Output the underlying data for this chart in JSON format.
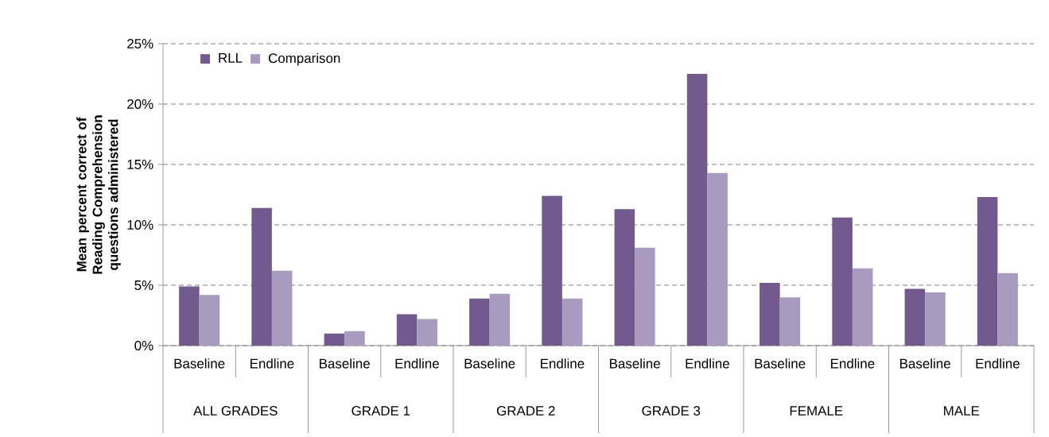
{
  "chart_data": {
    "type": "bar",
    "ylabel": "Mean percent correct of Reading Comprehension questions administered",
    "categories": [
      "Baseline",
      "Endline",
      "Baseline",
      "Endline",
      "Baseline",
      "Endline",
      "Baseline",
      "Endline",
      "Baseline",
      "Endline",
      "Baseline",
      "Endline"
    ],
    "annotations": [
      "ALL GRADES",
      "GRADE 1",
      "GRADE 2",
      "GRADE 3",
      "FEMALE",
      "MALE"
    ],
    "series": [
      {
        "name": "RLL",
        "color": "#725a8f",
        "values": [
          4.9,
          11.4,
          1.0,
          2.6,
          3.9,
          12.4,
          11.3,
          22.5,
          5.2,
          10.6,
          4.7,
          12.3
        ]
      },
      {
        "name": "Comparison",
        "color": "#a99abf",
        "values": [
          4.2,
          6.2,
          1.2,
          2.2,
          4.3,
          3.9,
          8.1,
          14.3,
          4.0,
          6.4,
          4.4,
          6.0
        ]
      }
    ],
    "ylim": [
      0,
      25
    ],
    "yticks": [
      {
        "value": 0,
        "label": "0%"
      },
      {
        "value": 5,
        "label": "5%"
      },
      {
        "value": 10,
        "label": "10%"
      },
      {
        "value": 15,
        "label": "15%"
      },
      {
        "value": 20,
        "label": "20%"
      },
      {
        "value": 25,
        "label": "25%"
      }
    ],
    "grid": "y",
    "legend": "top left"
  }
}
